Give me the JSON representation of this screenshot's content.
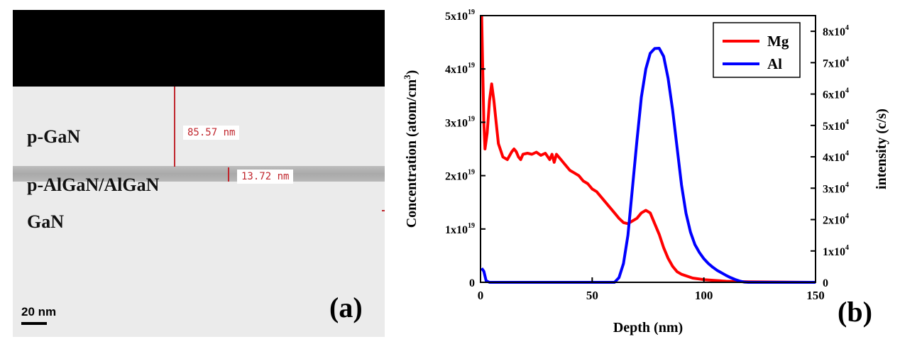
{
  "panel_a": {
    "layers": [
      "p-GaN",
      "p-AlGaN/AlGaN",
      "GaN"
    ],
    "measurements": [
      "85.57 nm",
      "13.72 nm"
    ],
    "scale_bar": "20 nm",
    "letter": "(a)"
  },
  "panel_b_letter": "(b)",
  "colors": {
    "mg": "#ff0000",
    "al": "#0000ff",
    "measure": "#c0262d"
  },
  "chart_data": {
    "type": "line",
    "xlabel": "Depth (nm)",
    "ylabel": "Concentration (atom/cm",
    "ylabel_sup": "3",
    "ylabel_close": ")",
    "y2label": "intensity (c/s)",
    "xlim": [
      0,
      150
    ],
    "ylim": [
      0,
      5
    ],
    "y2lim": [
      0,
      8.5
    ],
    "xticks": [
      "0",
      "50",
      "100",
      "150"
    ],
    "yticks": [
      {
        "v": 0,
        "base": "0",
        "exp": ""
      },
      {
        "v": 1,
        "base": "1x10",
        "exp": "19"
      },
      {
        "v": 2,
        "base": "2x10",
        "exp": "19"
      },
      {
        "v": 3,
        "base": "3x10",
        "exp": "19"
      },
      {
        "v": 4,
        "base": "4x10",
        "exp": "19"
      },
      {
        "v": 5,
        "base": "5x10",
        "exp": "19"
      }
    ],
    "y2ticks": [
      {
        "v": 0,
        "base": "0",
        "exp": ""
      },
      {
        "v": 1,
        "base": "1x10",
        "exp": "4"
      },
      {
        "v": 2,
        "base": "2x10",
        "exp": "4"
      },
      {
        "v": 3,
        "base": "3x10",
        "exp": "4"
      },
      {
        "v": 4,
        "base": "4x10",
        "exp": "4"
      },
      {
        "v": 5,
        "base": "5x10",
        "exp": "4"
      },
      {
        "v": 6,
        "base": "6x10",
        "exp": "4"
      },
      {
        "v": 7,
        "base": "7x10",
        "exp": "4"
      },
      {
        "v": 8,
        "base": "8x10",
        "exp": "4"
      }
    ],
    "legend_position": "top-right",
    "series": [
      {
        "name": "Mg",
        "axis": "left",
        "points": [
          [
            0.5,
            5.0
          ],
          [
            1,
            4.0
          ],
          [
            1.5,
            3.0
          ],
          [
            2,
            2.5
          ],
          [
            3,
            2.8
          ],
          [
            4,
            3.4
          ],
          [
            5,
            3.72
          ],
          [
            6,
            3.4
          ],
          [
            7,
            3.0
          ],
          [
            8,
            2.6
          ],
          [
            10,
            2.35
          ],
          [
            12,
            2.3
          ],
          [
            14,
            2.45
          ],
          [
            15,
            2.5
          ],
          [
            16,
            2.45
          ],
          [
            17,
            2.35
          ],
          [
            18,
            2.3
          ],
          [
            19,
            2.4
          ],
          [
            21,
            2.42
          ],
          [
            23,
            2.4
          ],
          [
            25,
            2.44
          ],
          [
            27,
            2.38
          ],
          [
            29,
            2.42
          ],
          [
            31,
            2.3
          ],
          [
            32,
            2.4
          ],
          [
            33,
            2.25
          ],
          [
            34,
            2.4
          ],
          [
            36,
            2.3
          ],
          [
            38,
            2.2
          ],
          [
            40,
            2.1
          ],
          [
            42,
            2.05
          ],
          [
            44,
            2.0
          ],
          [
            46,
            1.9
          ],
          [
            48,
            1.85
          ],
          [
            50,
            1.75
          ],
          [
            52,
            1.7
          ],
          [
            54,
            1.6
          ],
          [
            56,
            1.5
          ],
          [
            58,
            1.4
          ],
          [
            60,
            1.3
          ],
          [
            62,
            1.2
          ],
          [
            64,
            1.12
          ],
          [
            66,
            1.1
          ],
          [
            68,
            1.15
          ],
          [
            70,
            1.2
          ],
          [
            72,
            1.3
          ],
          [
            74,
            1.35
          ],
          [
            76,
            1.3
          ],
          [
            78,
            1.1
          ],
          [
            80,
            0.9
          ],
          [
            82,
            0.65
          ],
          [
            84,
            0.45
          ],
          [
            86,
            0.3
          ],
          [
            88,
            0.2
          ],
          [
            90,
            0.15
          ],
          [
            95,
            0.08
          ],
          [
            100,
            0.05
          ],
          [
            110,
            0.02
          ],
          [
            120,
            0.01
          ],
          [
            150,
            0.0
          ]
        ]
      },
      {
        "name": "Al",
        "axis": "right",
        "points": [
          [
            0.5,
            0.45
          ],
          [
            1.5,
            0.35
          ],
          [
            2.5,
            0.05
          ],
          [
            4,
            0.0
          ],
          [
            60,
            0.0
          ],
          [
            62,
            0.15
          ],
          [
            64,
            0.6
          ],
          [
            66,
            1.5
          ],
          [
            68,
            3.0
          ],
          [
            70,
            4.5
          ],
          [
            72,
            5.9
          ],
          [
            74,
            6.8
          ],
          [
            76,
            7.3
          ],
          [
            78,
            7.45
          ],
          [
            80,
            7.46
          ],
          [
            82,
            7.2
          ],
          [
            84,
            6.5
          ],
          [
            86,
            5.5
          ],
          [
            88,
            4.3
          ],
          [
            90,
            3.1
          ],
          [
            92,
            2.2
          ],
          [
            94,
            1.6
          ],
          [
            96,
            1.2
          ],
          [
            98,
            0.95
          ],
          [
            100,
            0.75
          ],
          [
            102,
            0.6
          ],
          [
            104,
            0.48
          ],
          [
            106,
            0.38
          ],
          [
            108,
            0.3
          ],
          [
            110,
            0.22
          ],
          [
            112,
            0.15
          ],
          [
            114,
            0.09
          ],
          [
            116,
            0.04
          ],
          [
            118,
            0.01
          ],
          [
            120,
            0.0
          ],
          [
            150,
            0.0
          ]
        ]
      }
    ]
  }
}
